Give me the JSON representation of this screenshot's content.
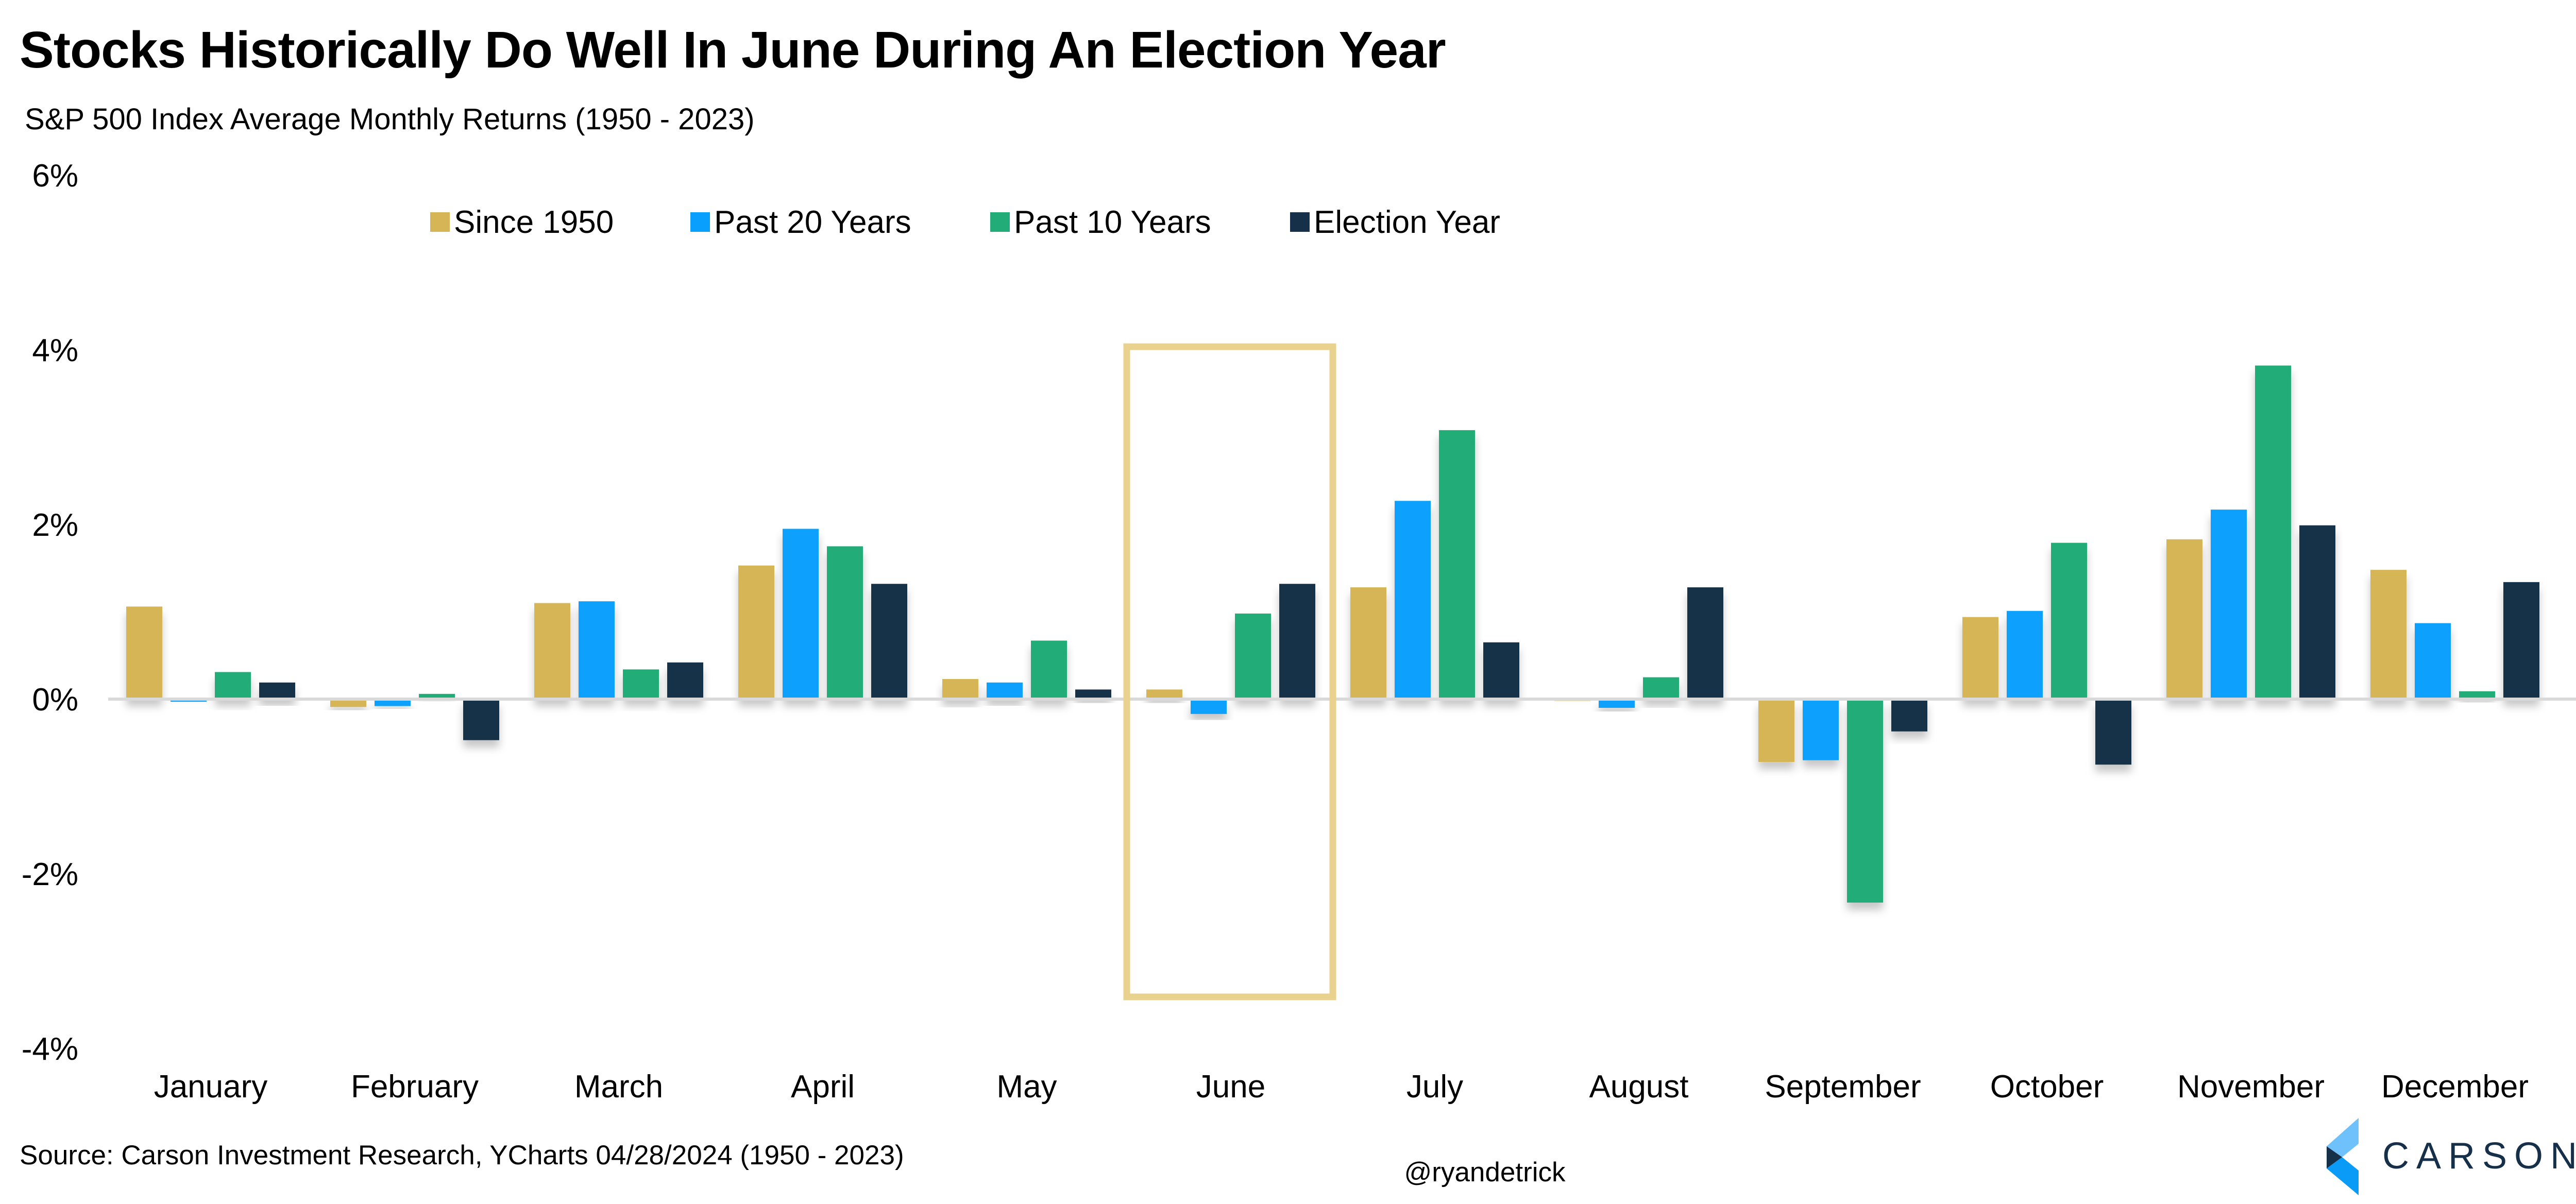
{
  "title": "Stocks Historically Do Well In June During An Election Year",
  "subtitle": "S&P 500 Index Average Monthly Returns (1950 - 2023)",
  "source": "Source: Carson Investment Research, YCharts 04/28/2024 (1950 - 2023)",
  "handle": "@ryandetrick",
  "logo_text": "CARSON",
  "chart_data": {
    "type": "bar",
    "title": "Stocks Historically Do Well In June During An Election Year",
    "subtitle": "S&P 500 Index Average Monthly Returns (1950 - 2023)",
    "xlabel": "",
    "ylabel": "",
    "ylim": [
      -4,
      6
    ],
    "yticks": [
      -4,
      -2,
      0,
      2,
      4,
      6
    ],
    "ytick_labels": [
      "-4%",
      "-2%",
      "0%",
      "2%",
      "4%",
      "6%"
    ],
    "grid": false,
    "legend_position": "top-center",
    "highlight_category": "June",
    "highlight_color": "#E9D28E",
    "categories": [
      "January",
      "February",
      "March",
      "April",
      "May",
      "June",
      "July",
      "August",
      "September",
      "October",
      "November",
      "December"
    ],
    "series": [
      {
        "name": "Since 1950",
        "color": "#D5B556",
        "values": [
          1.06,
          -0.09,
          1.1,
          1.53,
          0.23,
          0.11,
          1.28,
          -0.02,
          -0.72,
          0.94,
          1.83,
          1.48
        ]
      },
      {
        "name": "Past 20 Years",
        "color": "#08A0FC",
        "values": [
          -0.03,
          -0.08,
          1.12,
          1.95,
          0.19,
          -0.17,
          2.27,
          -0.1,
          -0.7,
          1.01,
          2.17,
          0.87
        ]
      },
      {
        "name": "Past 10 Years",
        "color": "#22AC77",
        "values": [
          0.31,
          0.06,
          0.34,
          1.75,
          0.67,
          0.98,
          3.08,
          0.25,
          -2.33,
          1.79,
          3.82,
          0.09
        ]
      },
      {
        "name": "Election Year",
        "color": "#16304A",
        "values": [
          0.19,
          -0.47,
          0.42,
          1.32,
          0.11,
          1.32,
          0.65,
          1.28,
          -0.37,
          -0.75,
          1.99,
          1.34
        ]
      }
    ]
  }
}
